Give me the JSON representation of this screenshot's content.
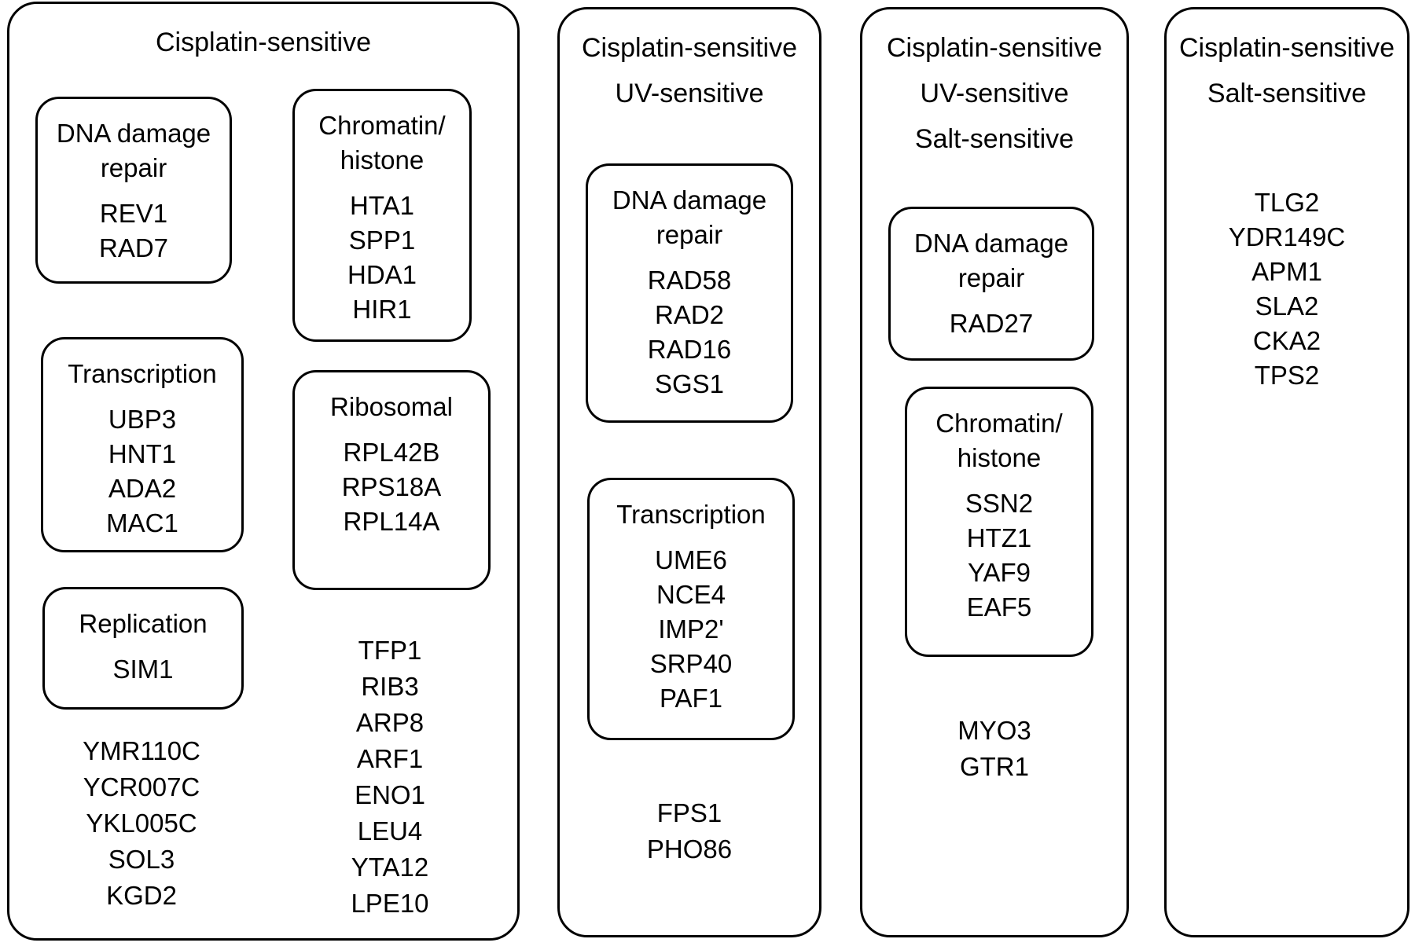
{
  "panels": [
    {
      "titles": [
        "Cisplatin-sensitive"
      ],
      "groups": [
        {
          "name": "DNA damage repair",
          "title_lines": [
            "DNA damage",
            "repair"
          ],
          "genes": [
            "REV1",
            "RAD7"
          ]
        },
        {
          "name": "Chromatin/histone",
          "title_lines": [
            "Chromatin/",
            "histone"
          ],
          "genes": [
            "HTA1",
            "SPP1",
            "HDA1",
            "HIR1"
          ]
        },
        {
          "name": "Transcription",
          "title_lines": [
            "Transcription"
          ],
          "genes": [
            "UBP3",
            "HNT1",
            "ADA2",
            "MAC1"
          ]
        },
        {
          "name": "Ribosomal",
          "title_lines": [
            "Ribosomal"
          ],
          "genes": [
            "RPL42B",
            "RPS18A",
            "RPL14A"
          ]
        },
        {
          "name": "Replication",
          "title_lines": [
            "Replication"
          ],
          "genes": [
            "SIM1"
          ]
        }
      ],
      "ungrouped_left": [
        "YMR110C",
        "YCR007C",
        "YKL005C",
        "SOL3",
        "KGD2"
      ],
      "ungrouped_right": [
        "TFP1",
        "RIB3",
        "ARP8",
        "ARF1",
        "ENO1",
        "LEU4",
        "YTA12",
        "LPE10"
      ]
    },
    {
      "titles": [
        "Cisplatin-sensitive",
        "UV-sensitive"
      ],
      "groups": [
        {
          "name": "DNA damage repair",
          "title_lines": [
            "DNA damage",
            "repair"
          ],
          "genes": [
            "RAD58",
            "RAD2",
            "RAD16",
            "SGS1"
          ]
        },
        {
          "name": "Transcription",
          "title_lines": [
            "Transcription"
          ],
          "genes": [
            "UME6",
            "NCE4",
            "IMP2'",
            "SRP40",
            "PAF1"
          ]
        }
      ],
      "ungrouped": [
        "FPS1",
        "PHO86"
      ]
    },
    {
      "titles": [
        "Cisplatin-sensitive",
        "UV-sensitive",
        "Salt-sensitive"
      ],
      "groups": [
        {
          "name": "DNA damage repair",
          "title_lines": [
            "DNA damage",
            "repair"
          ],
          "genes": [
            "RAD27"
          ]
        },
        {
          "name": "Chromatin/histone",
          "title_lines": [
            "Chromatin/",
            "histone"
          ],
          "genes": [
            "SSN2",
            "HTZ1",
            "YAF9",
            "EAF5"
          ]
        }
      ],
      "ungrouped": [
        "MYO3",
        "GTR1"
      ]
    },
    {
      "titles": [
        "Cisplatin-sensitive",
        "Salt-sensitive"
      ],
      "groups": [],
      "ungrouped": [
        "TLG2",
        "YDR149C",
        "APM1",
        "SLA2",
        "CKA2",
        "TPS2"
      ]
    }
  ]
}
